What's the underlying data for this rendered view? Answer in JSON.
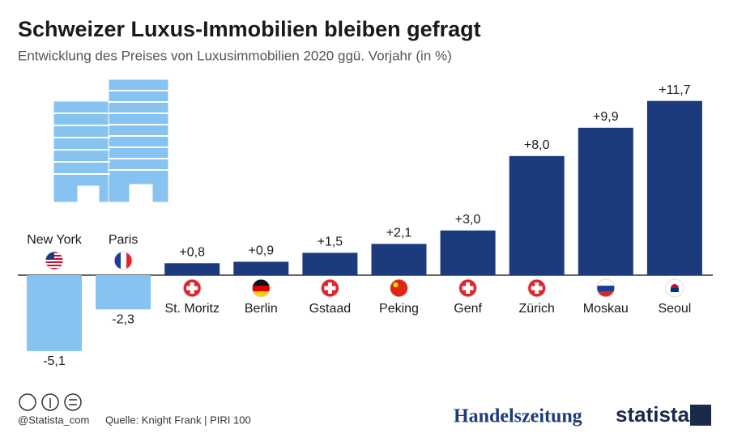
{
  "chart_data": {
    "type": "bar",
    "title": "Schweizer Luxus-Immobilien bleiben gefragt",
    "subtitle": "Entwicklung des Preises von Luxusimmobilien 2020 ggü. Vorjahr (in %)",
    "categories": [
      "New York",
      "Paris",
      "St. Moritz",
      "Berlin",
      "Gstaad",
      "Peking",
      "Genf",
      "Zürich",
      "Moskau",
      "Seoul"
    ],
    "values": [
      -5.1,
      -2.3,
      0.8,
      0.9,
      1.5,
      2.1,
      3.0,
      8.0,
      9.9,
      11.7
    ],
    "value_labels": [
      "-5,1",
      "-2,3",
      "+0,8",
      "+0,9",
      "+1,5",
      "+2,1",
      "+3,0",
      "+8,0",
      "+9,9",
      "+11,7"
    ],
    "positive_color": "#1b3b7d",
    "negative_color": "#86c3f0",
    "handle": "@Statista_com",
    "source": "Quelle: Knight Frank | PIRI 100",
    "partner": "Handelszeitung",
    "brand": "statista"
  }
}
